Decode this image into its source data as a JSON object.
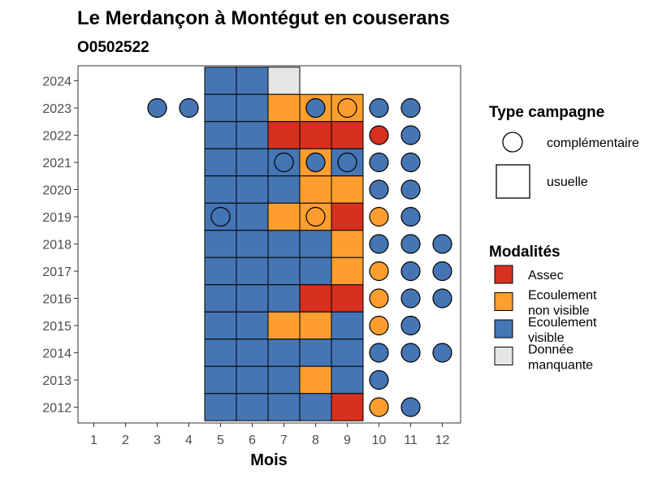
{
  "colors": {
    "Assec": "#d7301f",
    "Ecoulement non visible": "#fd9e2e",
    "Ecoulement visible": "#4575b4",
    "Donnée manquante": "#e6e6e6"
  },
  "chart_data": {
    "type": "heatmap",
    "title": "Le Merdançon à Montégut en couserans",
    "subtitle": "O0502522",
    "xlabel": "Mois",
    "ylabel": "",
    "x": [
      1,
      2,
      3,
      4,
      5,
      6,
      7,
      8,
      9,
      10,
      11,
      12
    ],
    "y": [
      2012,
      2013,
      2014,
      2015,
      2016,
      2017,
      2018,
      2019,
      2020,
      2021,
      2022,
      2023,
      2024
    ],
    "grid": false,
    "legend_position": "right",
    "legend": {
      "campaign_title": "Type campagne",
      "campaign_items": [
        {
          "key": "complementaire",
          "label": "complémentaire",
          "shape": "circle"
        },
        {
          "key": "usuelle",
          "label": "usuelle",
          "shape": "square"
        }
      ],
      "modalite_title": "Modalités",
      "modalite_items": [
        {
          "key": "Assec",
          "lines": [
            "Assec"
          ]
        },
        {
          "key": "Ecoulement non visible",
          "lines": [
            "Ecoulement",
            "non visible"
          ]
        },
        {
          "key": "Ecoulement visible",
          "lines": [
            "Ecoulement",
            "visible"
          ]
        },
        {
          "key": "Donnée manquante",
          "lines": [
            "Donnée",
            "manquante"
          ]
        }
      ]
    },
    "usuelle": [
      {
        "year": 2024,
        "month": 5,
        "value": "Ecoulement visible"
      },
      {
        "year": 2024,
        "month": 6,
        "value": "Ecoulement visible"
      },
      {
        "year": 2024,
        "month": 7,
        "value": "Donnée manquante"
      },
      {
        "year": 2023,
        "month": 5,
        "value": "Ecoulement visible"
      },
      {
        "year": 2023,
        "month": 6,
        "value": "Ecoulement visible"
      },
      {
        "year": 2023,
        "month": 7,
        "value": "Ecoulement non visible"
      },
      {
        "year": 2023,
        "month": 8,
        "value": "Ecoulement non visible"
      },
      {
        "year": 2023,
        "month": 9,
        "value": "Ecoulement non visible"
      },
      {
        "year": 2022,
        "month": 5,
        "value": "Ecoulement visible"
      },
      {
        "year": 2022,
        "month": 6,
        "value": "Ecoulement visible"
      },
      {
        "year": 2022,
        "month": 7,
        "value": "Assec"
      },
      {
        "year": 2022,
        "month": 8,
        "value": "Assec"
      },
      {
        "year": 2022,
        "month": 9,
        "value": "Assec"
      },
      {
        "year": 2021,
        "month": 5,
        "value": "Ecoulement visible"
      },
      {
        "year": 2021,
        "month": 6,
        "value": "Ecoulement visible"
      },
      {
        "year": 2021,
        "month": 7,
        "value": "Ecoulement visible"
      },
      {
        "year": 2021,
        "month": 8,
        "value": "Ecoulement non visible"
      },
      {
        "year": 2021,
        "month": 9,
        "value": "Ecoulement visible"
      },
      {
        "year": 2020,
        "month": 5,
        "value": "Ecoulement visible"
      },
      {
        "year": 2020,
        "month": 6,
        "value": "Ecoulement visible"
      },
      {
        "year": 2020,
        "month": 7,
        "value": "Ecoulement visible"
      },
      {
        "year": 2020,
        "month": 8,
        "value": "Ecoulement non visible"
      },
      {
        "year": 2020,
        "month": 9,
        "value": "Ecoulement non visible"
      },
      {
        "year": 2019,
        "month": 5,
        "value": "Ecoulement visible"
      },
      {
        "year": 2019,
        "month": 6,
        "value": "Ecoulement visible"
      },
      {
        "year": 2019,
        "month": 7,
        "value": "Ecoulement non visible"
      },
      {
        "year": 2019,
        "month": 8,
        "value": "Ecoulement non visible"
      },
      {
        "year": 2019,
        "month": 9,
        "value": "Assec"
      },
      {
        "year": 2018,
        "month": 5,
        "value": "Ecoulement visible"
      },
      {
        "year": 2018,
        "month": 6,
        "value": "Ecoulement visible"
      },
      {
        "year": 2018,
        "month": 7,
        "value": "Ecoulement visible"
      },
      {
        "year": 2018,
        "month": 8,
        "value": "Ecoulement visible"
      },
      {
        "year": 2018,
        "month": 9,
        "value": "Ecoulement non visible"
      },
      {
        "year": 2017,
        "month": 5,
        "value": "Ecoulement visible"
      },
      {
        "year": 2017,
        "month": 6,
        "value": "Ecoulement visible"
      },
      {
        "year": 2017,
        "month": 7,
        "value": "Ecoulement visible"
      },
      {
        "year": 2017,
        "month": 8,
        "value": "Ecoulement visible"
      },
      {
        "year": 2017,
        "month": 9,
        "value": "Ecoulement non visible"
      },
      {
        "year": 2016,
        "month": 5,
        "value": "Ecoulement visible"
      },
      {
        "year": 2016,
        "month": 6,
        "value": "Ecoulement visible"
      },
      {
        "year": 2016,
        "month": 7,
        "value": "Ecoulement visible"
      },
      {
        "year": 2016,
        "month": 8,
        "value": "Assec"
      },
      {
        "year": 2016,
        "month": 9,
        "value": "Assec"
      },
      {
        "year": 2015,
        "month": 5,
        "value": "Ecoulement visible"
      },
      {
        "year": 2015,
        "month": 6,
        "value": "Ecoulement visible"
      },
      {
        "year": 2015,
        "month": 7,
        "value": "Ecoulement non visible"
      },
      {
        "year": 2015,
        "month": 8,
        "value": "Ecoulement non visible"
      },
      {
        "year": 2015,
        "month": 9,
        "value": "Ecoulement visible"
      },
      {
        "year": 2014,
        "month": 5,
        "value": "Ecoulement visible"
      },
      {
        "year": 2014,
        "month": 6,
        "value": "Ecoulement visible"
      },
      {
        "year": 2014,
        "month": 7,
        "value": "Ecoulement visible"
      },
      {
        "year": 2014,
        "month": 8,
        "value": "Ecoulement visible"
      },
      {
        "year": 2014,
        "month": 9,
        "value": "Ecoulement visible"
      },
      {
        "year": 2013,
        "month": 5,
        "value": "Ecoulement visible"
      },
      {
        "year": 2013,
        "month": 6,
        "value": "Ecoulement visible"
      },
      {
        "year": 2013,
        "month": 7,
        "value": "Ecoulement visible"
      },
      {
        "year": 2013,
        "month": 8,
        "value": "Ecoulement non visible"
      },
      {
        "year": 2013,
        "month": 9,
        "value": "Ecoulement visible"
      },
      {
        "year": 2012,
        "month": 5,
        "value": "Ecoulement visible"
      },
      {
        "year": 2012,
        "month": 6,
        "value": "Ecoulement visible"
      },
      {
        "year": 2012,
        "month": 7,
        "value": "Ecoulement visible"
      },
      {
        "year": 2012,
        "month": 8,
        "value": "Ecoulement visible"
      },
      {
        "year": 2012,
        "month": 9,
        "value": "Assec"
      }
    ],
    "complementaire": [
      {
        "year": 2023,
        "month": 3,
        "value": "Ecoulement visible"
      },
      {
        "year": 2023,
        "month": 4,
        "value": "Ecoulement visible"
      },
      {
        "year": 2023,
        "month": 8,
        "value": "Ecoulement visible"
      },
      {
        "year": 2023,
        "month": 9,
        "value": "Ecoulement non visible"
      },
      {
        "year": 2023,
        "month": 10,
        "value": "Ecoulement visible"
      },
      {
        "year": 2023,
        "month": 11,
        "value": "Ecoulement visible"
      },
      {
        "year": 2022,
        "month": 10,
        "value": "Assec"
      },
      {
        "year": 2022,
        "month": 11,
        "value": "Ecoulement visible"
      },
      {
        "year": 2021,
        "month": 7,
        "value": "Ecoulement visible"
      },
      {
        "year": 2021,
        "month": 8,
        "value": "Ecoulement visible"
      },
      {
        "year": 2021,
        "month": 9,
        "value": "Ecoulement visible"
      },
      {
        "year": 2021,
        "month": 10,
        "value": "Ecoulement visible"
      },
      {
        "year": 2021,
        "month": 11,
        "value": "Ecoulement visible"
      },
      {
        "year": 2020,
        "month": 10,
        "value": "Ecoulement visible"
      },
      {
        "year": 2020,
        "month": 11,
        "value": "Ecoulement visible"
      },
      {
        "year": 2019,
        "month": 5,
        "value": "Ecoulement visible"
      },
      {
        "year": 2019,
        "month": 8,
        "value": "Ecoulement non visible"
      },
      {
        "year": 2019,
        "month": 10,
        "value": "Ecoulement non visible"
      },
      {
        "year": 2019,
        "month": 11,
        "value": "Ecoulement visible"
      },
      {
        "year": 2018,
        "month": 10,
        "value": "Ecoulement visible"
      },
      {
        "year": 2018,
        "month": 11,
        "value": "Ecoulement visible"
      },
      {
        "year": 2018,
        "month": 12,
        "value": "Ecoulement visible"
      },
      {
        "year": 2017,
        "month": 10,
        "value": "Ecoulement non visible"
      },
      {
        "year": 2017,
        "month": 11,
        "value": "Ecoulement visible"
      },
      {
        "year": 2017,
        "month": 12,
        "value": "Ecoulement visible"
      },
      {
        "year": 2016,
        "month": 10,
        "value": "Ecoulement non visible"
      },
      {
        "year": 2016,
        "month": 11,
        "value": "Ecoulement visible"
      },
      {
        "year": 2016,
        "month": 12,
        "value": "Ecoulement visible"
      },
      {
        "year": 2015,
        "month": 10,
        "value": "Ecoulement non visible"
      },
      {
        "year": 2015,
        "month": 11,
        "value": "Ecoulement visible"
      },
      {
        "year": 2014,
        "month": 10,
        "value": "Ecoulement visible"
      },
      {
        "year": 2014,
        "month": 11,
        "value": "Ecoulement visible"
      },
      {
        "year": 2014,
        "month": 12,
        "value": "Ecoulement visible"
      },
      {
        "year": 2013,
        "month": 10,
        "value": "Ecoulement visible"
      },
      {
        "year": 2012,
        "month": 10,
        "value": "Ecoulement non visible"
      },
      {
        "year": 2012,
        "month": 11,
        "value": "Ecoulement visible"
      }
    ]
  }
}
